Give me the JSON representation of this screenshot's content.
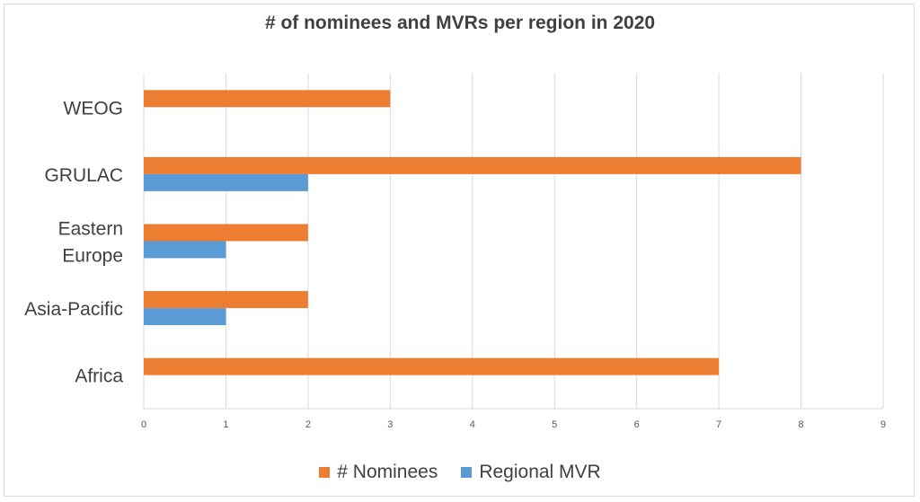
{
  "chart_data": {
    "type": "bar",
    "orientation": "horizontal",
    "title": "# of nominees and MVRs per region in 2020",
    "categories": [
      "Africa",
      "Asia-Pacific",
      "Eastern Europe",
      "GRULAC",
      "WEOG"
    ],
    "category_lines": [
      [
        "Africa"
      ],
      [
        "Asia-Pacific"
      ],
      [
        "Eastern",
        "Europe"
      ],
      [
        "GRULAC"
      ],
      [
        "WEOG"
      ]
    ],
    "series": [
      {
        "name": "# Nominees",
        "color": "#ed7d31",
        "values": [
          7,
          2,
          2,
          8,
          3
        ]
      },
      {
        "name": "Regional MVR",
        "color": "#5b9bd5",
        "values": [
          0,
          1,
          1,
          2,
          0
        ]
      }
    ],
    "xlim": [
      0,
      9
    ],
    "x_ticks": [
      "0",
      "1",
      "2",
      "3",
      "4",
      "5",
      "6",
      "7",
      "8",
      "9"
    ],
    "grid": true,
    "legend_position": "bottom"
  }
}
